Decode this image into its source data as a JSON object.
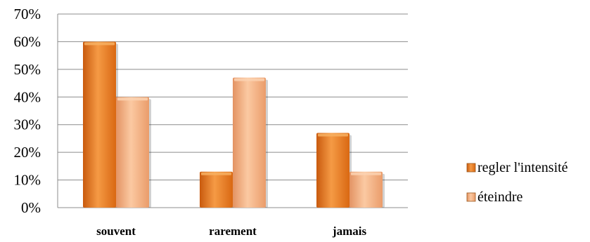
{
  "chart_data": {
    "type": "bar",
    "categories": [
      "souvent",
      "rarement",
      "jamais"
    ],
    "series": [
      {
        "name": "regler l'intensité",
        "values": [
          60,
          13,
          27
        ],
        "color": "#e8761e",
        "highlight": "#f7b061"
      },
      {
        "name": "éteindre",
        "values": [
          40,
          47,
          13
        ],
        "color": "#f2a878",
        "highlight": "#fbd2b1"
      }
    ],
    "yticks": [
      "0%",
      "10%",
      "20%",
      "30%",
      "40%",
      "50%",
      "60%",
      "70%"
    ],
    "ylim": [
      0,
      70
    ],
    "grid": true,
    "legend_position": "right",
    "value_unit": "percent"
  }
}
